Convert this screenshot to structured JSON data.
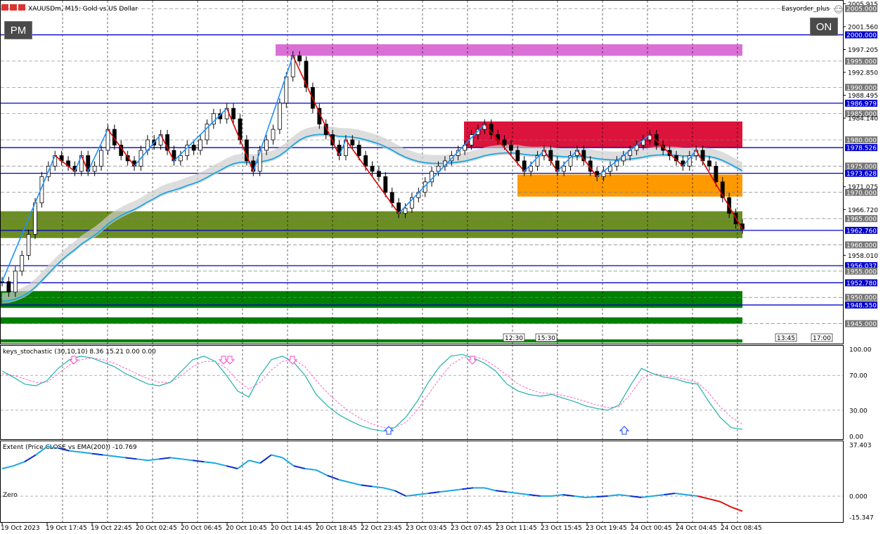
{
  "header": {
    "symbol_title": "XAUUSDm, M15:  Gold vs US Dollar",
    "expert_name": "Easyorder_plus",
    "pm_button": "PM",
    "on_button": "ON"
  },
  "colors": {
    "level_line": "#0000cc",
    "grid": "#808080",
    "zone_magenta": "#da70d6",
    "zone_crimson": "#dc143c",
    "zone_orange": "#ff9900",
    "zone_olive": "#6b8e23",
    "zone_green": "#008000",
    "zigzag_up": "#1e90ff",
    "zigzag_down": "#e00000",
    "ema": "#1aa7e0",
    "stoch_main": "#20b2aa",
    "stoch_signal": "#ff66cc"
  },
  "chart_data": [
    {
      "type": "line",
      "pane": "main",
      "y_range": [
        1941.2,
        2006.5
      ],
      "price_scale_labels": [
        "2005.915",
        "2005.000",
        "2001.560",
        "2000.000",
        "1997.205",
        "1995.000",
        "1992.850",
        "1990.000",
        "1988.495",
        "1986.979",
        "1985.000",
        "1984.140",
        "1980.000",
        "1978.526",
        "1975.000",
        "1973.628",
        "1971.075",
        "1970.000",
        "1966.720",
        "1965.000",
        "1962.760",
        "1960.000",
        "1958.010",
        "1956.037",
        "1955.000",
        "1952.780",
        "1950.000",
        "1948.550",
        "1945.000"
      ],
      "highlighted_levels": [
        "2000.000",
        "1986.979",
        "1978.526",
        "1973.628",
        "1962.760",
        "1956.037",
        "1952.780",
        "1948.550"
      ],
      "time_markers": [
        "12:30",
        "15:30",
        "13:45",
        "17:00"
      ],
      "close_series": [
        1953,
        1951,
        1955,
        1958,
        1962,
        1968,
        1973,
        1975,
        1977,
        1976,
        1975,
        1974,
        1977,
        1974,
        1975,
        1978,
        1982,
        1979,
        1977,
        1976,
        1975,
        1978,
        1980,
        1979,
        1981,
        1978,
        1976,
        1977,
        1979,
        1978,
        1980,
        1983,
        1985,
        1984,
        1986,
        1984,
        1980,
        1976,
        1974,
        1978,
        1980,
        1982,
        1987,
        1992,
        1996,
        1995,
        1990,
        1986,
        1983,
        1981,
        1979,
        1977,
        1980,
        1979,
        1977,
        1975,
        1974,
        1973,
        1970,
        1968,
        1966,
        1967,
        1969,
        1970,
        1972,
        1974,
        1975,
        1976,
        1977,
        1978,
        1979,
        1981,
        1982,
        1983,
        1981,
        1980,
        1979,
        1978,
        1976,
        1974,
        1975,
        1977,
        1978,
        1976,
        1974,
        1975,
        1977,
        1978,
        1976,
        1974,
        1973,
        1974,
        1975,
        1976,
        1977,
        1978,
        1979,
        1980,
        1981,
        1979,
        1978,
        1977,
        1976,
        1975,
        1977,
        1978,
        1976,
        1975,
        1972,
        1969,
        1966,
        1964,
        1963
      ]
    },
    {
      "type": "line",
      "pane": "stochastic",
      "title": "keys_stochastic (30,10,10) 8.36 15.21 0.00 0.00",
      "y_range": [
        0,
        100
      ],
      "tick_labels": [
        "100.00",
        "70.00",
        "30.00",
        "0.00"
      ],
      "main_values": [
        75,
        68,
        60,
        58,
        64,
        78,
        88,
        92,
        90,
        85,
        80,
        72,
        66,
        60,
        58,
        62,
        75,
        88,
        92,
        86,
        70,
        52,
        45,
        70,
        88,
        92,
        85,
        70,
        48,
        35,
        25,
        18,
        12,
        8,
        6,
        10,
        22,
        40,
        62,
        80,
        92,
        94,
        90,
        84,
        75,
        60,
        52,
        48,
        46,
        48,
        44,
        40,
        35,
        32,
        30,
        36,
        58,
        78,
        72,
        68,
        66,
        62,
        60,
        40,
        22,
        10,
        8
      ],
      "signal_values": [
        72,
        70,
        66,
        62,
        62,
        72,
        82,
        88,
        90,
        88,
        84,
        78,
        72,
        66,
        62,
        62,
        70,
        80,
        86,
        86,
        78,
        64,
        54,
        62,
        76,
        86,
        88,
        80,
        64,
        50,
        38,
        28,
        20,
        14,
        10,
        10,
        16,
        30,
        48,
        66,
        82,
        90,
        92,
        88,
        80,
        70,
        60,
        54,
        50,
        49,
        47,
        44,
        40,
        36,
        33,
        34,
        48,
        66,
        72,
        70,
        68,
        65,
        62,
        50,
        34,
        22,
        14
      ]
    },
    {
      "type": "line",
      "pane": "extent",
      "title": "Extent (Price CLOSE vs EMA(200)) -10.769",
      "zero_label": "Zero",
      "y_range": [
        -15.347,
        37.403
      ],
      "tick_labels": [
        "37.403",
        "0.000",
        "-15.347"
      ],
      "values": [
        20,
        22,
        25,
        30,
        36,
        35,
        33,
        32,
        31,
        30,
        29,
        28,
        27,
        26,
        27,
        28,
        27,
        26,
        25,
        24,
        22,
        20,
        26,
        24,
        30,
        28,
        22,
        20,
        19,
        15,
        12,
        10,
        8,
        7,
        6,
        4,
        0,
        1,
        2,
        3,
        4,
        5,
        6,
        6,
        4,
        3,
        2,
        1,
        0,
        0,
        1,
        0,
        -1,
        -0.5,
        0,
        1,
        0,
        -1,
        0,
        1,
        2,
        1,
        0,
        -2,
        -4,
        -8,
        -11
      ]
    }
  ],
  "x_axis_labels": [
    "19 Oct 2023",
    "19 Oct 17:45",
    "19 Oct 22:45",
    "20 Oct 02:45",
    "20 Oct 06:45",
    "20 Oct 10:45",
    "20 Oct 14:45",
    "20 Oct 18:45",
    "22 Oct 23:45",
    "23 Oct 03:45",
    "23 Oct 07:45",
    "23 Oct 11:45",
    "23 Oct 15:45",
    "23 Oct 19:45",
    "24 Oct 00:45",
    "24 Oct 04:45",
    "24 Oct 08:45"
  ]
}
